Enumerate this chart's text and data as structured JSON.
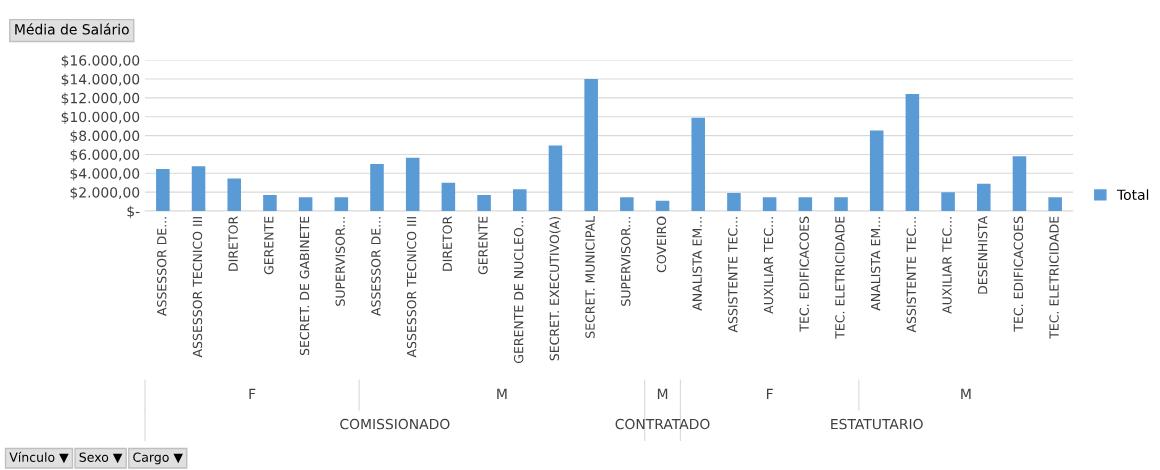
{
  "chart_data": {
    "type": "bar",
    "title": "Média de Salário",
    "categories": [
      "ASSESSOR DE...",
      "ASSESSOR TECNICO III",
      "DIRETOR",
      "GERENTE",
      "SECRET. DE GABINETE",
      "SUPERVISOR...",
      "ASSESSOR DE...",
      "ASSESSOR TECNICO III",
      "DIRETOR",
      "GERENTE",
      "GERENTE DE NUCLEO...",
      "SECRET. EXECUTIVO(A)",
      "SECRET. MUNICIPAL",
      "SUPERVISOR...",
      "COVEIRO",
      "ANALISTA EM...",
      "ASSISTENTE TEC...",
      "AUXILIAR TEC...",
      "TEC. EDIFICACOES",
      "TEC. ELETRICIDADE",
      "ANALISTA EM...",
      "ASSISTENTE TEC...",
      "AUXILIAR TEC...",
      "DESENHISTA",
      "TEC. EDIFICACOES",
      "TEC. ELETRICIDADE"
    ],
    "series": [
      {
        "name": "Total",
        "color": "#5b9bd5",
        "values": [
          4450,
          4750,
          3450,
          1700,
          1450,
          1450,
          5000,
          5650,
          3000,
          1700,
          2300,
          6950,
          14000,
          1450,
          1100,
          9900,
          1900,
          1450,
          1450,
          1450,
          8550,
          12400,
          2000,
          2900,
          5800,
          1450
        ]
      }
    ],
    "ylim": [
      0,
      16000
    ],
    "yticks": [
      {
        "value": 0,
        "label": "$-"
      },
      {
        "value": 2000,
        "label": "$2.000,00"
      },
      {
        "value": 4000,
        "label": "$4.000,00"
      },
      {
        "value": 6000,
        "label": "$6.000,00"
      },
      {
        "value": 8000,
        "label": "$8.000,00"
      },
      {
        "value": 10000,
        "label": "$10.000,00"
      },
      {
        "value": 12000,
        "label": "$12.000,00"
      },
      {
        "value": 14000,
        "label": "$14.000,00"
      },
      {
        "value": 16000,
        "label": "$16.000,00"
      }
    ],
    "grid": "y",
    "legend": "right",
    "annotations": [
      "F",
      "M",
      "M",
      "F",
      "M",
      "COMISSIONADO",
      "CONTRATADO",
      "ESTATUTARIO",
      "Vínculo ▼",
      "Sexo ▼",
      "Cargo ▼"
    ]
  }
}
